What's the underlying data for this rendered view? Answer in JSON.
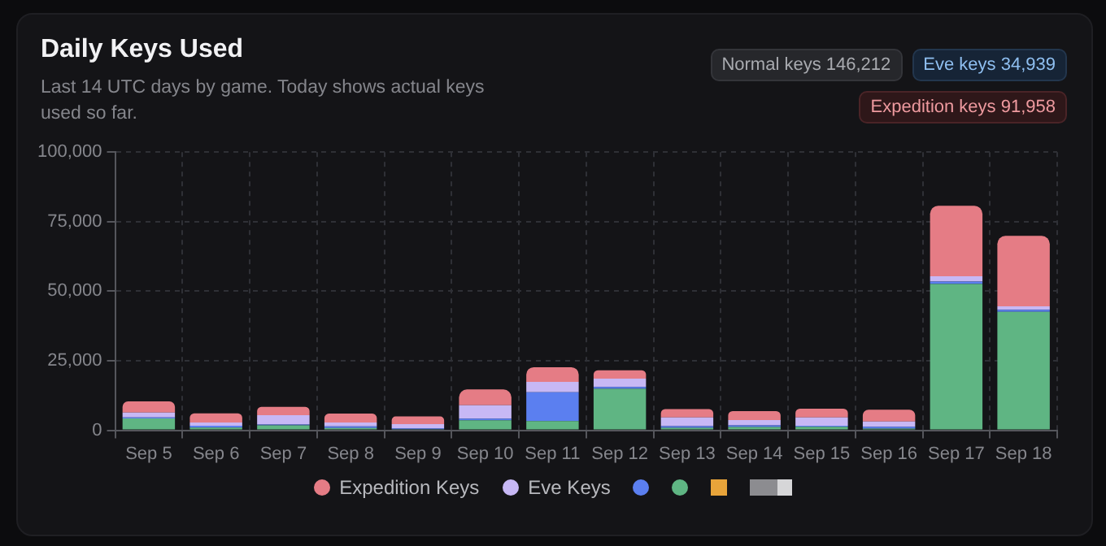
{
  "chart_data": {
    "type": "bar",
    "title": "Daily Keys Used",
    "subtitle": "Last 14 UTC days by game. Today shows actual keys used so far.",
    "annotations": [
      "Normal keys 146,212",
      "Eve keys 34,939",
      "Expedition keys 91,958"
    ],
    "categories": [
      "Sep 5",
      "Sep 6",
      "Sep 7",
      "Sep 8",
      "Sep 9",
      "Sep 10",
      "Sep 11",
      "Sep 12",
      "Sep 13",
      "Sep 14",
      "Sep 15",
      "Sep 16",
      "Sep 17",
      "Sep 18"
    ],
    "stacked": true,
    "ylim": [
      0,
      100000
    ],
    "yticks": [
      0,
      {
        "value": 25000,
        "label": "25,000"
      },
      {
        "value": 50000,
        "label": "50,000"
      },
      {
        "value": 75000,
        "label": "75,000"
      },
      {
        "value": 100000,
        "label": "100,000"
      }
    ],
    "grid": true,
    "legend": "bottom",
    "series": [
      {
        "name": null,
        "color": "#5fb583",
        "values": [
          4300,
          1000,
          1800,
          800,
          400,
          3600,
          3300,
          14900,
          900,
          1200,
          1300,
          600,
          52600,
          42600
        ]
      },
      {
        "name": null,
        "color": "#5b7ff0",
        "values": [
          300,
          600,
          300,
          600,
          300,
          600,
          10400,
          700,
          600,
          600,
          300,
          700,
          900,
          700
        ]
      },
      {
        "name": "Eve Keys",
        "color": "#c7b8f5",
        "values": [
          1800,
          1200,
          3300,
          1400,
          1500,
          4800,
          3700,
          3000,
          3100,
          1900,
          3000,
          1900,
          1900,
          1300
        ]
      },
      {
        "name": "Expedition Keys",
        "color": "#e57c85",
        "values": [
          4000,
          3300,
          3000,
          3200,
          2800,
          5700,
          5300,
          3000,
          3000,
          3200,
          3200,
          4200,
          25300,
          25300
        ]
      }
    ]
  }
}
